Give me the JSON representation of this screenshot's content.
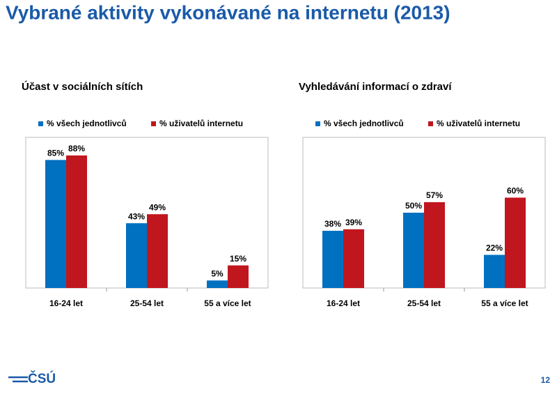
{
  "title": "Vybrané aktivity vykonávané na internetu (2013)",
  "chart_data": [
    {
      "type": "bar",
      "title": "Účast v sociálních sítích",
      "categories": [
        "16-24 let",
        "25-54 let",
        "55 a více let"
      ],
      "series": [
        {
          "name": "% všech jednotlivců",
          "color": "#0070c0",
          "values": [
            85,
            43,
            5
          ],
          "value_labels": [
            "85%",
            "43%",
            "5%"
          ]
        },
        {
          "name": "% uživatelů internetu",
          "color": "#c0161e",
          "values": [
            88,
            49,
            15
          ],
          "value_labels": [
            "88%",
            "49%",
            "15%"
          ]
        }
      ],
      "ylim": [
        0,
        100
      ],
      "legend": "top"
    },
    {
      "type": "bar",
      "title": "Vyhledávání informací o zdraví",
      "categories": [
        "16-24 let",
        "25-54 let",
        "55 a více let"
      ],
      "series": [
        {
          "name": "% všech jednotlivců",
          "color": "#0070c0",
          "values": [
            38,
            50,
            22
          ],
          "value_labels": [
            "38%",
            "50%",
            "22%"
          ]
        },
        {
          "name": "% uživatelů internetu",
          "color": "#c0161e",
          "values": [
            39,
            57,
            60
          ],
          "value_labels": [
            "39%",
            "57%",
            "60%"
          ]
        }
      ],
      "ylim": [
        0,
        100
      ],
      "legend": "top"
    }
  ],
  "footer": {
    "logo": "ČSÚ",
    "page_number": "12"
  }
}
